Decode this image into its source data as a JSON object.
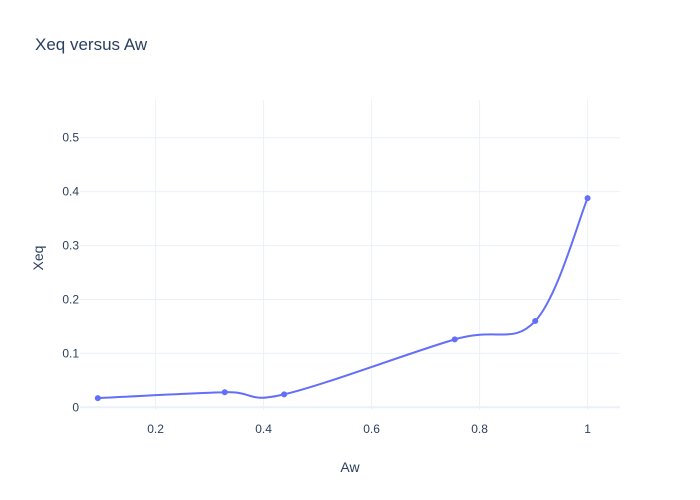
{
  "chart_data": {
    "type": "line",
    "title": "Xeq versus Aw",
    "xlabel": "Aw",
    "ylabel": "Xeq",
    "xlim": [
      0.06,
      1.06
    ],
    "ylim": [
      -0.005,
      0.57
    ],
    "x_ticks": [
      0.2,
      0.4,
      0.6,
      0.8,
      1
    ],
    "x_tick_labels": [
      "0.2",
      "0.4",
      "0.6",
      "0.8",
      "1"
    ],
    "y_ticks": [
      0,
      0.1,
      0.2,
      0.3,
      0.4,
      0.5
    ],
    "y_tick_labels": [
      "0",
      "0.1",
      "0.2",
      "0.3",
      "0.4",
      "0.5"
    ],
    "grid": true,
    "line_shape": "spline",
    "markers": true,
    "series": [
      {
        "x": [
          0.093,
          0.328,
          0.438,
          0.754,
          0.903,
          1.0
        ],
        "y": [
          0.017,
          0.028,
          0.024,
          0.126,
          0.16,
          0.388
        ],
        "color": "#636efa"
      }
    ]
  }
}
